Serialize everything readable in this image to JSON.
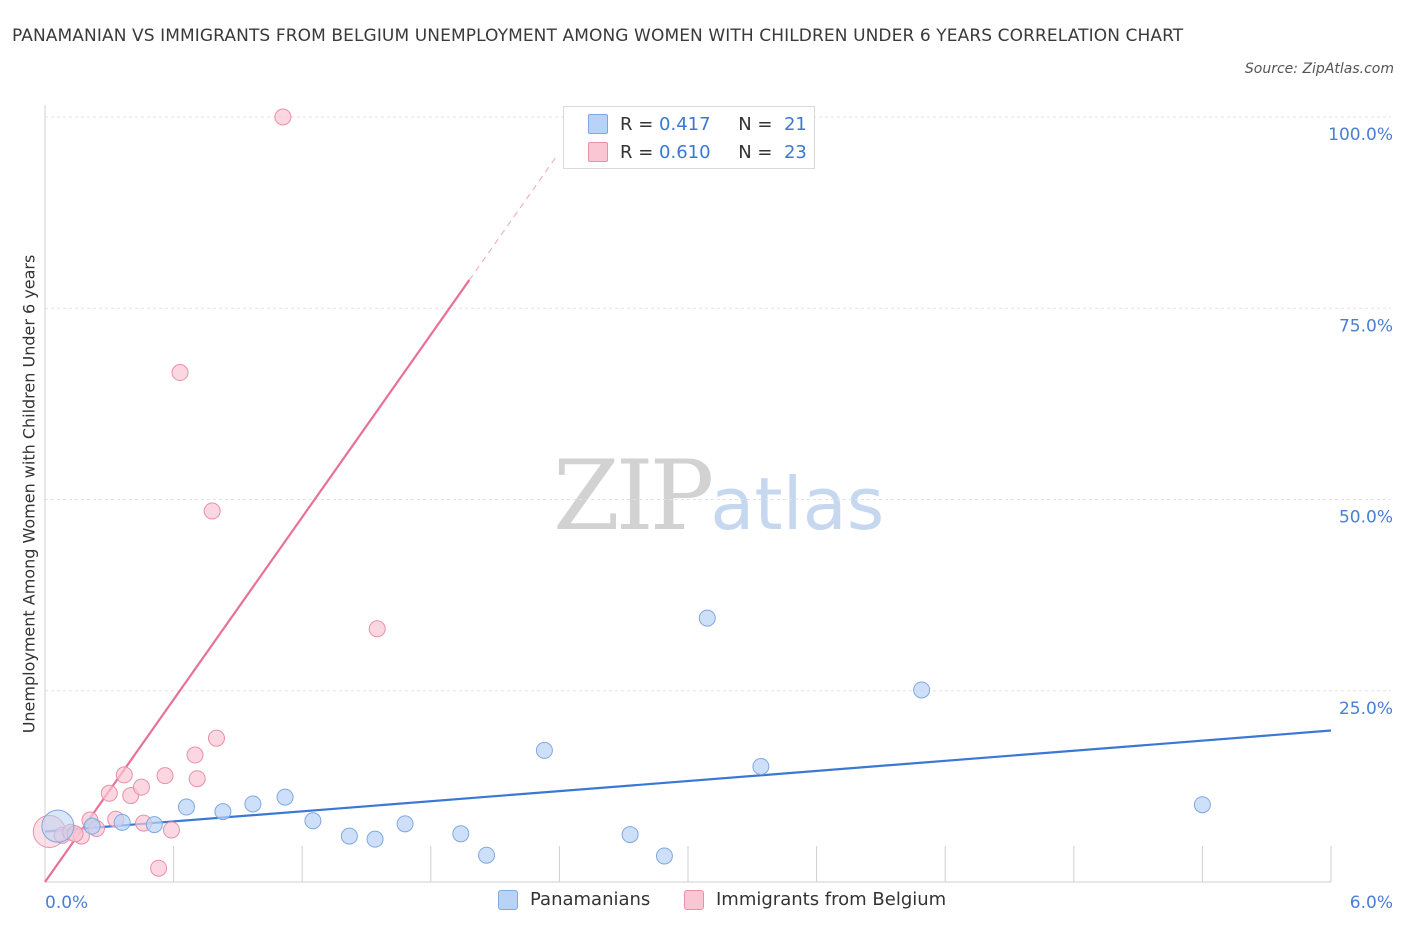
{
  "header": {
    "title": "PANAMANIAN VS IMMIGRANTS FROM BELGIUM UNEMPLOYMENT AMONG WOMEN WITH CHILDREN UNDER 6 YEARS CORRELATION CHART",
    "source": "Source: ZipAtlas.com"
  },
  "watermark": {
    "zip": "ZIP",
    "atlas": "atlas"
  },
  "legend": {
    "rows": [
      {
        "r_label": "R =",
        "r_value": "0.417",
        "n_label": "N =",
        "n_value": "21",
        "color": "#b9d3f6"
      },
      {
        "r_label": "R =",
        "r_value": "0.610",
        "n_label": "N =",
        "n_value": "23",
        "color": "#f9c6d4"
      }
    ]
  },
  "colors": {
    "blue_fill": "#b9d3f6",
    "blue_stroke": "#7fa8e0",
    "blue_line": "#3b78d4",
    "pink_fill": "#f9c6d4",
    "pink_stroke": "#eb8fa9",
    "pink_line": "#e8709a",
    "grid": "#e3e3e3",
    "axis_text": "#4a7fd0"
  },
  "chart_data": {
    "type": "scatter",
    "title": "PANAMANIAN VS IMMIGRANTS FROM BELGIUM UNEMPLOYMENT AMONG WOMEN WITH CHILDREN UNDER 6 YEARS CORRELATION CHART",
    "xlabel": "",
    "ylabel": "Unemployment Among Women with Children Under 6 years",
    "xlim": [
      0,
      6
    ],
    "ylim": [
      0,
      100
    ],
    "x_tick_labels": [
      "0.0%",
      "6.0%"
    ],
    "y_tick_labels": [
      "100.0%",
      "75.0%",
      "50.0%",
      "25.0%"
    ],
    "y_tick_values": [
      100,
      75,
      50,
      25
    ],
    "grid": true,
    "legend_position": "bottom",
    "series": [
      {
        "name": "Panamanians",
        "color": "#b9d3f6",
        "r": 0.417,
        "n": 21,
        "trend": {
          "x": [
            0,
            6
          ],
          "y": [
            6.6,
            19.8
          ],
          "extend_dashed": false
        },
        "points": [
          {
            "x": 0.06,
            "y": 7.3,
            "big": true
          },
          {
            "x": 0.22,
            "y": 7.3
          },
          {
            "x": 0.36,
            "y": 7.8
          },
          {
            "x": 0.51,
            "y": 7.5
          },
          {
            "x": 0.66,
            "y": 9.8
          },
          {
            "x": 0.83,
            "y": 9.2
          },
          {
            "x": 0.97,
            "y": 10.2
          },
          {
            "x": 1.12,
            "y": 11.1
          },
          {
            "x": 1.25,
            "y": 8.0
          },
          {
            "x": 1.42,
            "y": 6.0
          },
          {
            "x": 1.54,
            "y": 5.6
          },
          {
            "x": 1.68,
            "y": 7.6
          },
          {
            "x": 1.94,
            "y": 6.3
          },
          {
            "x": 2.06,
            "y": 3.5
          },
          {
            "x": 2.33,
            "y": 17.2
          },
          {
            "x": 2.73,
            "y": 6.2
          },
          {
            "x": 2.89,
            "y": 3.4
          },
          {
            "x": 3.09,
            "y": 34.5
          },
          {
            "x": 3.34,
            "y": 15.1
          },
          {
            "x": 4.09,
            "y": 25.1
          },
          {
            "x": 5.4,
            "y": 10.1
          }
        ]
      },
      {
        "name": "Immigrants from Belgium",
        "color": "#f9c6d4",
        "r": 0.61,
        "n": 23,
        "trend": {
          "x": [
            0,
            1.98
          ],
          "y": [
            0,
            78.7
          ],
          "dashed_to": {
            "x": 2.39,
            "y": 95
          }
        },
        "points": [
          {
            "x": 0.02,
            "y": 6.6,
            "big": true
          },
          {
            "x": 0.08,
            "y": 6.1
          },
          {
            "x": 0.12,
            "y": 6.5
          },
          {
            "x": 0.17,
            "y": 6.0
          },
          {
            "x": 0.21,
            "y": 8.1
          },
          {
            "x": 0.24,
            "y": 7.0
          },
          {
            "x": 0.3,
            "y": 11.6
          },
          {
            "x": 0.33,
            "y": 8.2
          },
          {
            "x": 0.37,
            "y": 14.0
          },
          {
            "x": 0.4,
            "y": 11.3
          },
          {
            "x": 0.45,
            "y": 12.4
          },
          {
            "x": 0.46,
            "y": 7.7
          },
          {
            "x": 0.53,
            "y": 1.8
          },
          {
            "x": 0.56,
            "y": 13.9
          },
          {
            "x": 0.59,
            "y": 6.8
          },
          {
            "x": 0.63,
            "y": 66.6
          },
          {
            "x": 0.7,
            "y": 16.6
          },
          {
            "x": 0.71,
            "y": 13.5
          },
          {
            "x": 0.78,
            "y": 48.5
          },
          {
            "x": 0.8,
            "y": 18.8
          },
          {
            "x": 1.11,
            "y": 100.0
          },
          {
            "x": 1.55,
            "y": 33.1
          },
          {
            "x": 0.14,
            "y": 6.3
          }
        ]
      }
    ]
  }
}
